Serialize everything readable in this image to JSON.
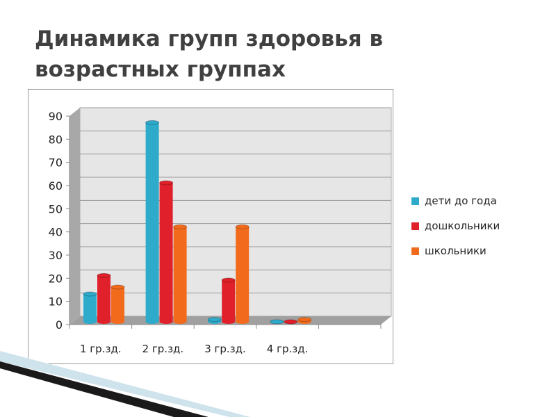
{
  "title": "Динамика групп здоровья в возрастных группах",
  "chart_data": {
    "type": "bar",
    "title": "",
    "categories": [
      "1 гр.зд.",
      "2 гр.зд.",
      "3 гр.зд.",
      "4 гр.зд.",
      ""
    ],
    "series": [
      {
        "name": "дети до года",
        "color": "#2eaacb",
        "values": [
          12,
          86,
          1,
          0,
          null
        ]
      },
      {
        "name": "дошкольники",
        "color": "#e0202a",
        "values": [
          20,
          60,
          18,
          0,
          null
        ]
      },
      {
        "name": "школьники",
        "color": "#f26b1d",
        "values": [
          15,
          41,
          41,
          1,
          null
        ]
      }
    ],
    "ylim": [
      0,
      90
    ],
    "yticks": [
      0,
      10,
      20,
      30,
      40,
      50,
      60,
      70,
      80,
      90
    ],
    "grid": true,
    "legend": "right",
    "style": "3d-cylinder"
  }
}
